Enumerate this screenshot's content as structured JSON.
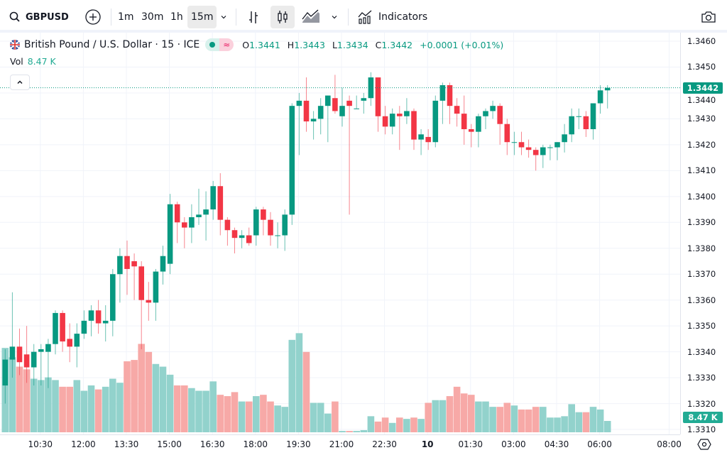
{
  "toolbar": {
    "symbol": "GBPUSD",
    "intervals": [
      "1m",
      "30m",
      "1h",
      "15m"
    ],
    "active_interval": "15m",
    "indicators_label": "Indicators",
    "icons": [
      "search-icon",
      "plus-circle-icon",
      "chevron-down-icon",
      "bar-chart-icon",
      "candlestick-icon",
      "area-chart-icon",
      "indicators-icon",
      "camera-icon"
    ]
  },
  "legend": {
    "title": "British Pound / U.S. Dollar · 15 · ICE",
    "pill_right": "≈",
    "o_label": "O",
    "o": "1.3441",
    "h_label": "H",
    "h": "1.3443",
    "l_label": "L",
    "l": "1.3434",
    "c_label": "C",
    "c": "1.3442",
    "change": "+0.0001 (+0.01%)",
    "vol_label": "Vol",
    "vol_value": "8.47 K",
    "collapse": "^"
  },
  "price_axis": {
    "ticks": [
      "1.3460",
      "1.3450",
      "1.3440",
      "1.3430",
      "1.3420",
      "1.3410",
      "1.3400",
      "1.3390",
      "1.3380",
      "1.3370",
      "1.3360",
      "1.3350",
      "1.3340",
      "1.3330",
      "1.3320",
      "1.3310"
    ],
    "last_price_label": "1.3442",
    "last_volume_label": "8.47 K"
  },
  "time_axis": {
    "ticks": [
      "10:30",
      "12:00",
      "13:30",
      "15:00",
      "16:30",
      "18:00",
      "19:30",
      "21:00",
      "22:30",
      "10",
      "01:30",
      "03:00",
      "04:30",
      "06:00",
      "08:00"
    ]
  },
  "colors": {
    "up": "#089981",
    "down": "#f23645",
    "vol_up": "#92d2cc",
    "vol_down": "#f7a9a7"
  },
  "chart_data": {
    "type": "candlestick",
    "symbol": "GBPUSD",
    "interval": "15",
    "ylim": [
      1.331,
      1.346
    ],
    "last_price": 1.3442,
    "ohlc": [
      [
        1.3327,
        1.3341,
        1.332,
        1.3337
      ],
      [
        1.3337,
        1.3363,
        1.333,
        1.3342
      ],
      [
        1.3342,
        1.3349,
        1.3331,
        1.3336
      ],
      [
        1.3339,
        1.335,
        1.3328,
        1.3334
      ],
      [
        1.3334,
        1.3343,
        1.3327,
        1.334
      ],
      [
        1.334,
        1.3343,
        1.3327,
        1.3341
      ],
      [
        1.334,
        1.3345,
        1.3326,
        1.3343
      ],
      [
        1.3343,
        1.3356,
        1.3339,
        1.3355
      ],
      [
        1.3355,
        1.3356,
        1.334,
        1.3344
      ],
      [
        1.3345,
        1.3351,
        1.3336,
        1.3342
      ],
      [
        1.3342,
        1.3351,
        1.3334,
        1.3347
      ],
      [
        1.3347,
        1.3356,
        1.3345,
        1.3352
      ],
      [
        1.3352,
        1.3358,
        1.3346,
        1.3356
      ],
      [
        1.3356,
        1.336,
        1.3347,
        1.3351
      ],
      [
        1.3351,
        1.3358,
        1.3344,
        1.3352
      ],
      [
        1.3352,
        1.3372,
        1.3346,
        1.337
      ],
      [
        1.337,
        1.338,
        1.3359,
        1.3377
      ],
      [
        1.3377,
        1.3383,
        1.3362,
        1.3372
      ],
      [
        1.3375,
        1.3378,
        1.336,
        1.3373
      ],
      [
        1.3373,
        1.3375,
        1.3341,
        1.336
      ],
      [
        1.336,
        1.3367,
        1.3352,
        1.3359
      ],
      [
        1.3359,
        1.3372,
        1.3352,
        1.3371
      ],
      [
        1.3371,
        1.3381,
        1.3366,
        1.3377
      ],
      [
        1.3374,
        1.3401,
        1.337,
        1.3397
      ],
      [
        1.3397,
        1.3398,
        1.3382,
        1.339
      ],
      [
        1.339,
        1.3392,
        1.338,
        1.3388
      ],
      [
        1.3388,
        1.3397,
        1.3382,
        1.3392
      ],
      [
        1.3392,
        1.3403,
        1.3389,
        1.3393
      ],
      [
        1.3393,
        1.3402,
        1.3383,
        1.3395
      ],
      [
        1.3395,
        1.3406,
        1.3391,
        1.3404
      ],
      [
        1.3404,
        1.3409,
        1.3385,
        1.3391
      ],
      [
        1.3391,
        1.3392,
        1.3381,
        1.3387
      ],
      [
        1.3387,
        1.3388,
        1.3378,
        1.3384
      ],
      [
        1.3384,
        1.3387,
        1.338,
        1.3385
      ],
      [
        1.3385,
        1.3388,
        1.3381,
        1.3382
      ],
      [
        1.3385,
        1.3396,
        1.3381,
        1.3395
      ],
      [
        1.3395,
        1.3396,
        1.3385,
        1.3391
      ],
      [
        1.3391,
        1.3394,
        1.3381,
        1.3385
      ],
      [
        1.3385,
        1.339,
        1.338,
        1.3385
      ],
      [
        1.3385,
        1.3395,
        1.3379,
        1.3393
      ],
      [
        1.3393,
        1.3436,
        1.3389,
        1.3435
      ],
      [
        1.3435,
        1.344,
        1.3416,
        1.3437
      ],
      [
        1.3437,
        1.3446,
        1.3425,
        1.3429
      ],
      [
        1.3429,
        1.3433,
        1.3422,
        1.343
      ],
      [
        1.343,
        1.3438,
        1.3424,
        1.3435
      ],
      [
        1.3435,
        1.3439,
        1.3421,
        1.3439
      ],
      [
        1.3438,
        1.3447,
        1.3432,
        1.3433
      ],
      [
        1.3431,
        1.3442,
        1.3427,
        1.3435
      ],
      [
        1.3437,
        1.3439,
        1.3393,
        1.3435
      ],
      [
        1.3434,
        1.3439,
        1.3434,
        1.3434
      ],
      [
        1.3437,
        1.344,
        1.3432,
        1.3438
      ],
      [
        1.3438,
        1.3448,
        1.3435,
        1.3446
      ],
      [
        1.3446,
        1.3446,
        1.3425,
        1.3431
      ],
      [
        1.3431,
        1.3435,
        1.3424,
        1.3427
      ],
      [
        1.3427,
        1.3434,
        1.3424,
        1.3432
      ],
      [
        1.3432,
        1.3435,
        1.3418,
        1.3431
      ],
      [
        1.3431,
        1.3438,
        1.3428,
        1.3433
      ],
      [
        1.3433,
        1.3434,
        1.3418,
        1.3422
      ],
      [
        1.3422,
        1.3426,
        1.3416,
        1.3424
      ],
      [
        1.3423,
        1.3426,
        1.3418,
        1.3421
      ],
      [
        1.3421,
        1.3439,
        1.3419,
        1.3437
      ],
      [
        1.3437,
        1.3444,
        1.3428,
        1.3443
      ],
      [
        1.3443,
        1.3444,
        1.3428,
        1.3435
      ],
      [
        1.3435,
        1.3438,
        1.3427,
        1.3432
      ],
      [
        1.3432,
        1.3439,
        1.342,
        1.3426
      ],
      [
        1.3426,
        1.3428,
        1.3419,
        1.3425
      ],
      [
        1.3425,
        1.3432,
        1.3419,
        1.3431
      ],
      [
        1.3431,
        1.3434,
        1.3426,
        1.3433
      ],
      [
        1.3433,
        1.3437,
        1.343,
        1.3435
      ],
      [
        1.3435,
        1.3436,
        1.342,
        1.3428
      ],
      [
        1.3428,
        1.343,
        1.3416,
        1.3421
      ],
      [
        1.3421,
        1.3425,
        1.3416,
        1.3421
      ],
      [
        1.3421,
        1.3425,
        1.3416,
        1.3419
      ],
      [
        1.3419,
        1.3422,
        1.3415,
        1.3418
      ],
      [
        1.3418,
        1.3419,
        1.341,
        1.3416
      ],
      [
        1.3416,
        1.342,
        1.3411,
        1.3419
      ],
      [
        1.3419,
        1.342,
        1.3414,
        1.3419
      ],
      [
        1.3419,
        1.3421,
        1.3414,
        1.3421
      ],
      [
        1.3421,
        1.3428,
        1.3417,
        1.3424
      ],
      [
        1.3424,
        1.3434,
        1.3421,
        1.3431
      ],
      [
        1.3431,
        1.3434,
        1.3426,
        1.3431
      ],
      [
        1.3431,
        1.3433,
        1.3423,
        1.3426
      ],
      [
        1.3426,
        1.3436,
        1.3422,
        1.3436
      ],
      [
        1.3436,
        1.3443,
        1.3432,
        1.3441
      ],
      [
        1.3441,
        1.3443,
        1.3434,
        1.3442
      ]
    ],
    "volume_k": [
      63,
      56,
      49,
      47,
      40,
      39,
      41,
      39,
      34,
      34,
      39,
      31,
      35,
      32,
      34,
      40,
      37,
      53,
      54,
      66,
      60,
      51,
      49,
      43,
      35,
      35,
      33,
      31,
      31,
      38,
      28,
      27,
      30,
      23,
      23,
      27,
      28,
      23,
      20,
      19,
      69,
      74,
      60,
      22,
      22,
      14,
      23,
      1,
      1,
      1,
      1.6,
      12,
      8,
      11,
      7,
      11,
      10,
      11,
      10,
      22,
      24,
      24,
      27,
      34,
      29,
      28,
      23,
      23,
      19,
      19,
      22,
      20,
      17,
      17,
      19,
      19,
      11,
      11,
      12,
      21,
      15,
      15,
      19,
      17,
      8.47
    ]
  }
}
